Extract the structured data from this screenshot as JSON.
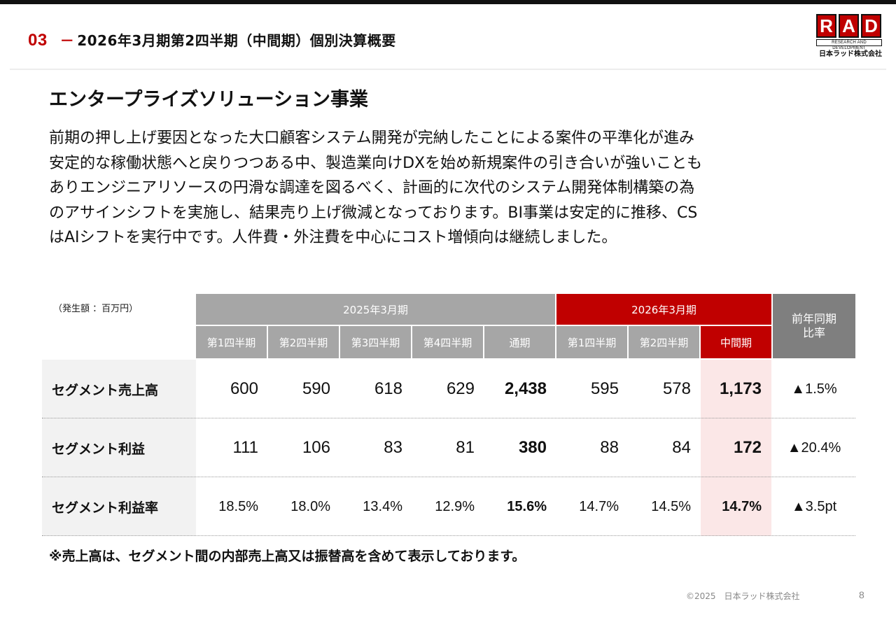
{
  "header": {
    "section_num": "03",
    "dash": "－",
    "title": "2026年3月期第2四半期（中間期）個別決算概要"
  },
  "logo": {
    "letters": [
      "R",
      "A",
      "D"
    ],
    "subtitle": "RESEARCH AND DEVELOPMENT",
    "company": "日本ラッド株式会社",
    "color": "#c00000"
  },
  "section_title": "エンタープライズソリューション事業",
  "body_lines": [
    "前期の押し上げ要因となった大口顧客システム開発が完納したことによる案件の平準化が進み",
    "安定的な稼働状態へと戻りつつある中、製造業向けDXを始め新規案件の引き合いが強いことも",
    "ありエンジニアリソースの円滑な調達を図るべく、計画的に次代のシステム開発体制構築の為",
    "のアサインシフトを実施し、結果売り上げ微減となっております。BI事業は安定的に推移、CS",
    "はAIシフトを実行中です。人件費・外注費を中心にコスト増傾向は継続しました。"
  ],
  "table": {
    "unit_label": "（発生額 ：百万円）",
    "group_2025": "2025年3月期",
    "group_2026": "2026年3月期",
    "yoy_header": "前年同期\n比率",
    "columns": [
      "第1四半期",
      "第2四半期",
      "第3四半期",
      "第4四半期",
      "通期",
      "第1四半期",
      "第2四半期",
      "中間期"
    ],
    "rows": [
      {
        "label": "セグメント売上高",
        "values": [
          "600",
          "590",
          "618",
          "629",
          "2,438",
          "595",
          "578",
          "1,173"
        ],
        "yoy": "▲1.5%"
      },
      {
        "label": "セグメント利益",
        "values": [
          "111",
          "106",
          "83",
          "81",
          "380",
          "88",
          "84",
          "172"
        ],
        "yoy": "▲20.4%"
      },
      {
        "label": "セグメント利益率",
        "values": [
          "18.5%",
          "18.0%",
          "13.4%",
          "12.9%",
          "15.6%",
          "14.7%",
          "14.5%",
          "14.7%"
        ],
        "yoy": "▲3.5pt"
      }
    ],
    "colors": {
      "gray_header": "#a6a6a6",
      "red_header": "#c00000",
      "yoy_header": "#7f7f7f",
      "highlight": "#fbe7e7"
    }
  },
  "footnote": "※売上高は、セグメント間の内部売上高又は振替高を含めて表示しております。",
  "footer": {
    "copyright": "©2025　日本ラッド株式会社",
    "page": "8"
  }
}
